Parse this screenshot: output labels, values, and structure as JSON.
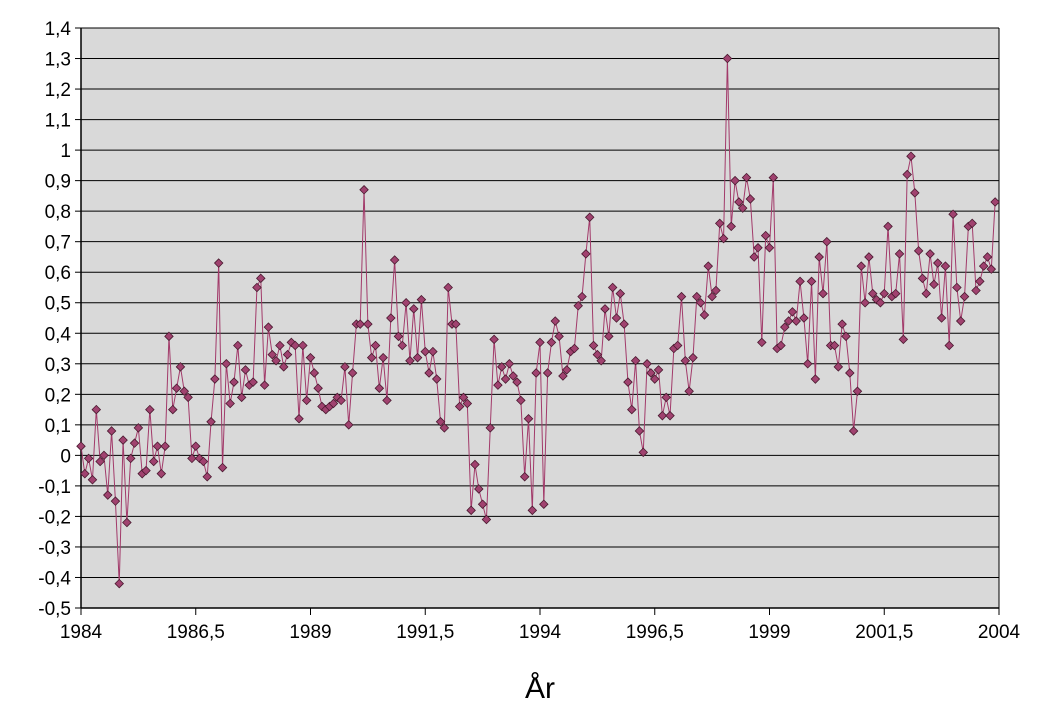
{
  "chart_data": {
    "type": "line",
    "title": "",
    "xlabel": "År",
    "ylabel": "",
    "xlim": [
      1984,
      2004
    ],
    "ylim": [
      -0.5,
      1.4
    ],
    "grid": "horizontal",
    "legend": "none",
    "x_ticks": [
      {
        "value": 1984,
        "label": "1984"
      },
      {
        "value": 1986.5,
        "label": "1986,5"
      },
      {
        "value": 1989,
        "label": "1989"
      },
      {
        "value": 1991.5,
        "label": "1991,5"
      },
      {
        "value": 1994,
        "label": "1994"
      },
      {
        "value": 1996.5,
        "label": "1996,5"
      },
      {
        "value": 1999,
        "label": "1999"
      },
      {
        "value": 2001.5,
        "label": "2001,5"
      },
      {
        "value": 2004,
        "label": "2004"
      }
    ],
    "y_ticks": [
      {
        "value": 1.4,
        "label": "1,4"
      },
      {
        "value": 1.3,
        "label": "1,3"
      },
      {
        "value": 1.2,
        "label": "1,2"
      },
      {
        "value": 1.1,
        "label": "1,1"
      },
      {
        "value": 1.0,
        "label": "1"
      },
      {
        "value": 0.9,
        "label": "0,9"
      },
      {
        "value": 0.8,
        "label": "0,8"
      },
      {
        "value": 0.7,
        "label": "0,7"
      },
      {
        "value": 0.6,
        "label": "0,6"
      },
      {
        "value": 0.5,
        "label": "0,5"
      },
      {
        "value": 0.4,
        "label": "0,4"
      },
      {
        "value": 0.3,
        "label": "0,3"
      },
      {
        "value": 0.2,
        "label": "0,2"
      },
      {
        "value": 0.1,
        "label": "0,1"
      },
      {
        "value": 0.0,
        "label": "0"
      },
      {
        "value": -0.1,
        "label": "-0,1"
      },
      {
        "value": -0.2,
        "label": "-0,2"
      },
      {
        "value": -0.3,
        "label": "-0,3"
      },
      {
        "value": -0.4,
        "label": "-0,4"
      },
      {
        "value": -0.5,
        "label": "-0,5"
      }
    ],
    "colors": {
      "plot_background": "#d9d9d9",
      "gridline": "#000000",
      "series_line": "#a23a6a",
      "marker_fill": "#a0426f",
      "marker_stroke": "#4a1a30"
    },
    "series": [
      {
        "x_start": 1984.0,
        "x_step": 0.08333,
        "values": [
          0.03,
          -0.06,
          -0.01,
          -0.08,
          0.15,
          -0.02,
          0.0,
          -0.13,
          0.08,
          -0.15,
          -0.42,
          0.05,
          -0.22,
          -0.01,
          0.04,
          0.09,
          -0.06,
          -0.05,
          0.15,
          -0.02,
          0.03,
          -0.06,
          0.03,
          0.39,
          0.15,
          0.22,
          0.29,
          0.21,
          0.19,
          -0.01,
          0.03,
          -0.01,
          -0.02,
          -0.07,
          0.11,
          0.25,
          0.63,
          -0.04,
          0.3,
          0.17,
          0.24,
          0.36,
          0.19,
          0.28,
          0.23,
          0.24,
          0.55,
          0.58,
          0.23,
          0.42,
          0.33,
          0.31,
          0.36,
          0.29,
          0.33,
          0.37,
          0.36,
          0.12,
          0.36,
          0.18,
          0.32,
          0.27,
          0.22,
          0.16,
          0.15,
          0.16,
          0.17,
          0.19,
          0.18,
          0.29,
          0.1,
          0.27,
          0.43,
          0.43,
          0.87,
          0.43,
          0.32,
          0.36,
          0.22,
          0.32,
          0.18,
          0.45,
          0.64,
          0.39,
          0.36,
          0.5,
          0.31,
          0.48,
          0.32,
          0.51,
          0.34,
          0.27,
          0.34,
          0.25,
          0.11,
          0.09,
          0.55,
          0.43,
          0.43,
          0.16,
          0.19,
          0.17,
          -0.18,
          -0.03,
          -0.11,
          -0.16,
          -0.21,
          0.09,
          0.38,
          0.23,
          0.29,
          0.25,
          0.3,
          0.26,
          0.24,
          0.18,
          -0.07,
          0.12,
          -0.18,
          0.27,
          0.37,
          -0.16,
          0.27,
          0.37,
          0.44,
          0.39,
          0.26,
          0.28,
          0.34,
          0.35,
          0.49,
          0.52,
          0.66,
          0.78,
          0.36,
          0.33,
          0.31,
          0.48,
          0.39,
          0.55,
          0.45,
          0.53,
          0.43,
          0.24,
          0.15,
          0.31,
          0.08,
          0.01,
          0.3,
          0.27,
          0.25,
          0.28,
          0.13,
          0.19,
          0.13,
          0.35,
          0.36,
          0.52,
          0.31,
          0.21,
          0.32,
          0.52,
          0.5,
          0.46,
          0.62,
          0.52,
          0.54,
          0.76,
          0.71,
          1.3,
          0.75,
          0.9,
          0.83,
          0.81,
          0.91,
          0.84,
          0.65,
          0.68,
          0.37,
          0.72,
          0.68,
          0.91,
          0.35,
          0.36,
          0.42,
          0.44,
          0.47,
          0.44,
          0.57,
          0.45,
          0.3,
          0.57,
          0.25,
          0.65,
          0.53,
          0.7,
          0.36,
          0.36,
          0.29,
          0.43,
          0.39,
          0.27,
          0.08,
          0.21,
          0.62,
          0.5,
          0.65,
          0.53,
          0.51,
          0.5,
          0.53,
          0.75,
          0.52,
          0.53,
          0.66,
          0.38,
          0.92,
          0.98,
          0.86,
          0.67,
          0.58,
          0.53,
          0.66,
          0.56,
          0.63,
          0.45,
          0.62,
          0.36,
          0.79,
          0.55,
          0.44,
          0.52,
          0.75,
          0.76,
          0.54,
          0.57,
          0.62,
          0.65,
          0.61,
          0.83
        ]
      }
    ]
  }
}
